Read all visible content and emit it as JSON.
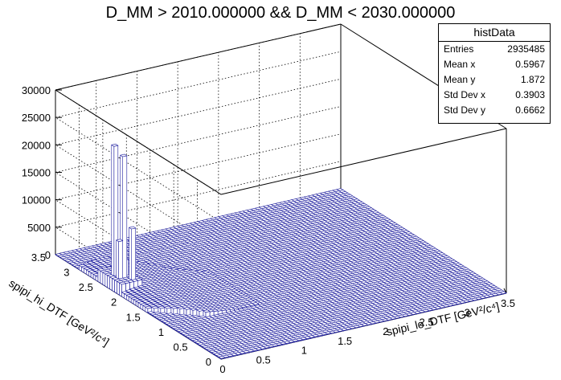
{
  "chart_data": {
    "type": "lego",
    "title": "D_MM > 2010.000000 && D_MM < 2030.000000",
    "xlabel": "spipi_lo_DTF [GeV²/c⁴]",
    "ylabel": "spipi_hi_DTF [GeV²/c⁴]",
    "zlabel": "",
    "xlim": [
      0,
      3.5
    ],
    "ylim": [
      0,
      3.5
    ],
    "zlim": [
      0,
      30000
    ],
    "x_ticks": [
      "0",
      "0.5",
      "1",
      "1.5",
      "2",
      "2.5",
      "3",
      "3.5"
    ],
    "y_ticks": [
      "0",
      "0.5",
      "1",
      "1.5",
      "2",
      "2.5",
      "3",
      "3.5"
    ],
    "z_ticks": [
      "0",
      "5000",
      "10000",
      "15000",
      "20000",
      "25000",
      "30000"
    ],
    "bin_width": 0.05,
    "peaks": [
      {
        "x": 0.075,
        "y": 2.375,
        "z": 25800
      },
      {
        "x": 0.125,
        "y": 2.275,
        "z": 24300
      },
      {
        "x": 0.175,
        "y": 2.175,
        "z": 11500
      },
      {
        "x": 0.075,
        "y": 2.275,
        "z": 9000
      },
      {
        "x": 0.125,
        "y": 2.375,
        "z": 8000
      },
      {
        "x": 0.175,
        "y": 2.325,
        "z": 5000
      }
    ],
    "bar_color": "#1f1f9f",
    "grid": true,
    "stats": {
      "name": "histData",
      "entries_label": "Entries",
      "entries": "2935485",
      "mean_x_label": "Mean x",
      "mean_x": "0.5967",
      "mean_y_label": "Mean y",
      "mean_y": "1.872",
      "std_x_label": "Std Dev x",
      "std_x": "0.3903",
      "std_y_label": "Std Dev y",
      "std_y": "0.6662"
    }
  }
}
